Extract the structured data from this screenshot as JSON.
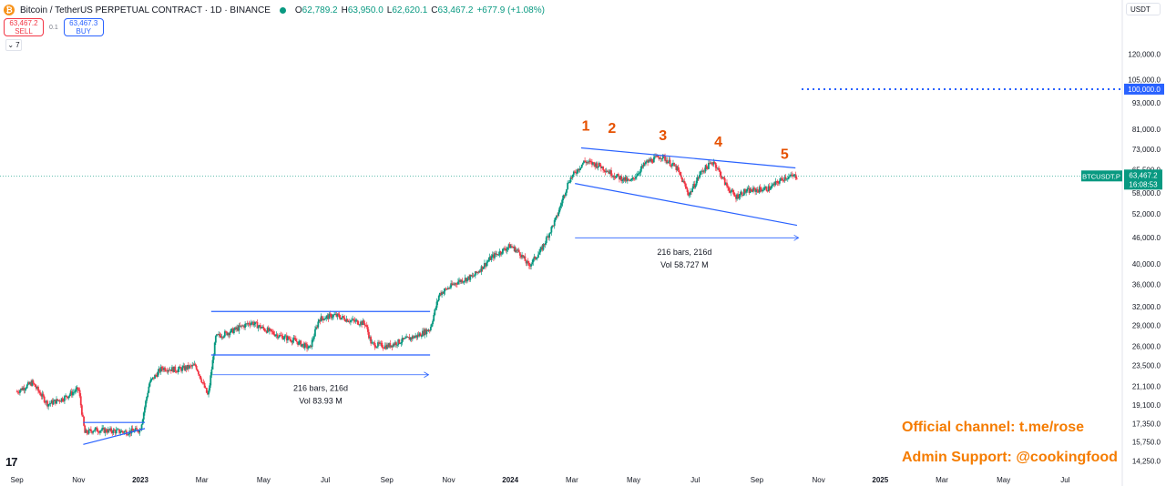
{
  "header": {
    "symbol_title": "Bitcoin / TetherUS PERPETUAL CONTRACT · 1D · BINANCE",
    "logo_glyph": "₿",
    "ohlc": [
      {
        "label": "O",
        "value": "62,789.2"
      },
      {
        "label": "H",
        "value": "63,950.0"
      },
      {
        "label": "L",
        "value": "62,620.1"
      },
      {
        "label": "C",
        "value": "63,467.2"
      },
      {
        "label": "",
        "value": "+677.9 (+1.08%)"
      }
    ]
  },
  "trade": {
    "sell_price": "63,467.2",
    "sell_label": "SELL",
    "spread": "0.1",
    "buy_price": "63,467.3",
    "buy_label": "BUY"
  },
  "indicators_toggle": {
    "glyph": "⌄",
    "count": "7"
  },
  "currency": "USDT",
  "tv_logo": "17",
  "branding": {
    "official": "Official channel: t.me/rose",
    "admin": "Admin Support: @cookingfood"
  },
  "colors": {
    "up": "#089981",
    "down": "#f23645",
    "drawing": "#2962ff",
    "label_orange": "#e65100",
    "brand": "#f57c00",
    "axis_text": "#131722"
  },
  "chart_data": {
    "type": "candlestick",
    "title": "Bitcoin / TetherUS PERPETUAL CONTRACT · 1D · BINANCE",
    "scale": "log",
    "ylim": [
      13500,
      145000
    ],
    "y_ticks": [
      120000,
      105000,
      93000,
      81000,
      73000,
      65500,
      58000,
      52000,
      46000,
      40000,
      36000,
      32000,
      29000,
      26000,
      23500,
      21100,
      19100,
      17350,
      15750,
      14250
    ],
    "y_tick_labels": [
      "120,000.0",
      "105,000.0",
      "93,000.0",
      "81,000.0",
      "73,000.0",
      "65,500.0",
      "58,000.0",
      "52,000.0",
      "46,000.0",
      "40,000.0",
      "36,000.0",
      "32,000.0",
      "29,000.0",
      "26,000.0",
      "23,500.0",
      "21,100.0",
      "19,100.0",
      "17,350.0",
      "15,750.0",
      "14,250.0"
    ],
    "x_months": [
      "Sep",
      "Nov",
      "2023",
      "Mar",
      "May",
      "Jul",
      "Sep",
      "Nov",
      "2024",
      "Mar",
      "May",
      "Jul",
      "Sep",
      "Nov",
      "2025",
      "Mar",
      "May",
      "Jul"
    ],
    "x_month_index": [
      0,
      2,
      4,
      6,
      8,
      10,
      12,
      14,
      16,
      18,
      20,
      22,
      24,
      26,
      28,
      30,
      32,
      34
    ],
    "xlim_month_index": [
      -0.55,
      35.85
    ],
    "anchors": [
      [
        0.0,
        20500
      ],
      [
        0.5,
        21500
      ],
      [
        1.0,
        19200
      ],
      [
        1.5,
        19800
      ],
      [
        2.0,
        20800
      ],
      [
        2.2,
        16500
      ],
      [
        2.5,
        16800
      ],
      [
        3.0,
        16700
      ],
      [
        3.6,
        16600
      ],
      [
        4.0,
        16800
      ],
      [
        4.3,
        21500
      ],
      [
        4.7,
        23200
      ],
      [
        5.2,
        23000
      ],
      [
        5.8,
        23500
      ],
      [
        6.2,
        20000
      ],
      [
        6.45,
        27300
      ],
      [
        7.0,
        28200
      ],
      [
        7.6,
        29500
      ],
      [
        8.0,
        28500
      ],
      [
        8.5,
        27500
      ],
      [
        9.0,
        26800
      ],
      [
        9.5,
        25700
      ],
      [
        9.8,
        30000
      ],
      [
        10.3,
        30600
      ],
      [
        10.8,
        29800
      ],
      [
        11.3,
        29300
      ],
      [
        11.5,
        26300
      ],
      [
        12.0,
        26000
      ],
      [
        12.5,
        26800
      ],
      [
        13.0,
        27500
      ],
      [
        13.4,
        28500
      ],
      [
        13.7,
        34200
      ],
      [
        14.3,
        36500
      ],
      [
        14.8,
        37500
      ],
      [
        15.4,
        41500
      ],
      [
        16.0,
        44000
      ],
      [
        16.3,
        42500
      ],
      [
        16.6,
        39600
      ],
      [
        17.0,
        43000
      ],
      [
        17.5,
        51000
      ],
      [
        17.9,
        62000
      ],
      [
        18.4,
        68500
      ],
      [
        18.9,
        67000
      ],
      [
        19.4,
        63500
      ],
      [
        19.9,
        61500
      ],
      [
        20.4,
        68000
      ],
      [
        20.9,
        70500
      ],
      [
        21.4,
        66000
      ],
      [
        21.8,
        57500
      ],
      [
        22.2,
        65000
      ],
      [
        22.6,
        68500
      ],
      [
        23.0,
        60500
      ],
      [
        23.3,
        56800
      ],
      [
        23.6,
        58500
      ],
      [
        24.0,
        59000
      ],
      [
        24.4,
        59500
      ],
      [
        24.9,
        63000
      ],
      [
        25.3,
        63467
      ]
    ],
    "last_price": 63467.2,
    "last_price_label": "63,467.2",
    "countdown": "16:08:53",
    "symbol_tag": "BTCUSDT.P",
    "target_line": {
      "value": 100000,
      "label": "100,000.0",
      "from_month": 25.45
    },
    "drawings": [
      {
        "name": "triangle-upper-line",
        "from": [
          2.15,
          17450
        ],
        "to": [
          4.15,
          17450
        ]
      },
      {
        "name": "triangle-lower-line",
        "from": [
          2.15,
          15550
        ],
        "to": [
          4.15,
          16900
        ]
      },
      {
        "name": "range-top-line",
        "from": [
          6.3,
          31200
        ],
        "to": [
          13.4,
          31200
        ]
      },
      {
        "name": "range-bottom-line",
        "from": [
          6.3,
          24850
        ],
        "to": [
          13.4,
          24850
        ]
      },
      {
        "name": "wedge-upper-line",
        "from": [
          18.3,
          73500
        ],
        "to": [
          25.25,
          66200
        ]
      },
      {
        "name": "wedge-lower-line",
        "from": [
          18.1,
          61000
        ],
        "to": [
          25.3,
          49000
        ]
      }
    ],
    "measures": [
      {
        "name": "measure-range",
        "from": [
          6.35,
          22400
        ],
        "to": [
          13.35,
          22400
        ],
        "label": "216 bars, 216d",
        "vol": "Vol 83.93 M",
        "label_at": [
          9.85,
          20600
        ]
      },
      {
        "name": "measure-wedge",
        "from": [
          18.1,
          45900
        ],
        "to": [
          25.35,
          45900
        ],
        "label": "216 bars, 216d",
        "vol": "Vol 58.727 M",
        "label_at": [
          21.65,
          42000
        ]
      }
    ],
    "wave_labels": [
      {
        "text": "1",
        "at": [
          18.45,
          80500
        ]
      },
      {
        "text": "2",
        "at": [
          19.3,
          79500
        ]
      },
      {
        "text": "3",
        "at": [
          20.95,
          76500
        ]
      },
      {
        "text": "4",
        "at": [
          22.75,
          74000
        ]
      },
      {
        "text": "5",
        "at": [
          24.9,
          69500
        ]
      }
    ]
  }
}
